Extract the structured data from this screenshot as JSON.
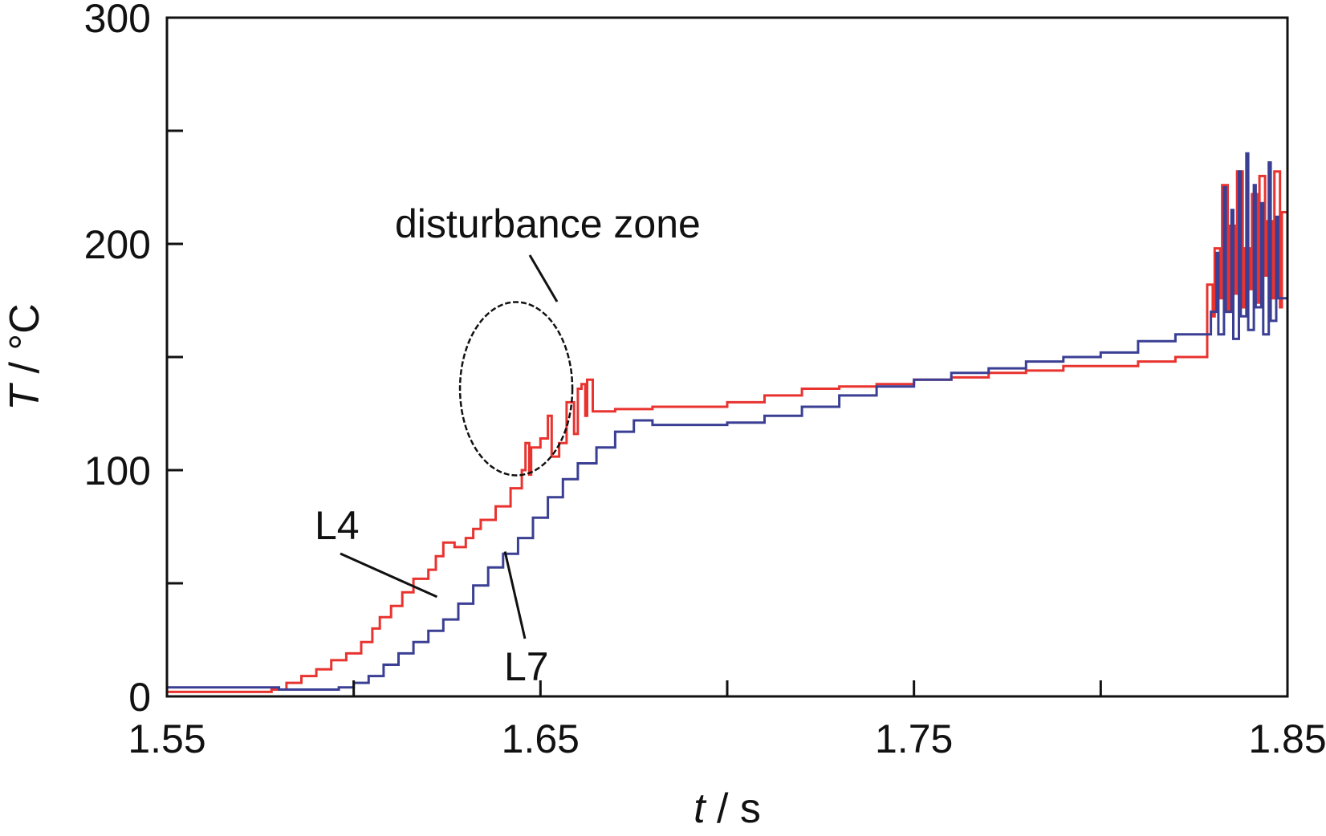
{
  "chart_data": {
    "type": "line",
    "title": "",
    "xlabel_var": "t",
    "xlabel_unit": " / s",
    "ylabel_var": "T",
    "ylabel_unit": " / °C",
    "xlim": [
      1.55,
      1.85
    ],
    "ylim": [
      0,
      300
    ],
    "x_ticks": [
      1.55,
      1.6,
      1.65,
      1.7,
      1.75,
      1.8,
      1.85
    ],
    "x_tick_labels": [
      "1.55",
      "",
      "1.65",
      "",
      "1.75",
      "",
      "1.85"
    ],
    "y_ticks": [
      0,
      50,
      100,
      150,
      200,
      250,
      300
    ],
    "y_tick_labels": [
      "0",
      "",
      "100",
      "",
      "200",
      "",
      "300"
    ],
    "grid": false,
    "colors": {
      "L4": "#e8332f",
      "L7": "#3a3f94",
      "axis": "#111111",
      "annotation": "#111111"
    },
    "series": [
      {
        "name": "L4",
        "x": [
          1.55,
          1.56,
          1.578,
          1.582,
          1.586,
          1.59,
          1.594,
          1.598,
          1.602,
          1.605,
          1.607,
          1.61,
          1.613,
          1.616,
          1.62,
          1.622,
          1.624,
          1.627,
          1.63,
          1.632,
          1.634,
          1.638,
          1.642,
          1.645,
          1.646,
          1.647,
          1.6475,
          1.65,
          1.652,
          1.653,
          1.655,
          1.657,
          1.659,
          1.66,
          1.661,
          1.662,
          1.6625,
          1.664,
          1.67,
          1.68,
          1.69,
          1.7,
          1.71,
          1.72,
          1.73,
          1.74,
          1.75,
          1.76,
          1.77,
          1.78,
          1.79,
          1.8,
          1.81,
          1.82,
          1.828,
          1.8285,
          1.83,
          1.8305,
          1.832,
          1.8325,
          1.834,
          1.8345,
          1.836,
          1.8365,
          1.838,
          1.8385,
          1.84,
          1.8405,
          1.842,
          1.8425,
          1.844,
          1.8445,
          1.846,
          1.8465,
          1.848,
          1.8485,
          1.85
        ],
        "y": [
          2,
          2,
          3,
          6,
          9,
          12,
          16,
          19,
          24,
          30,
          35,
          40,
          46,
          52,
          56,
          62,
          68,
          66,
          70,
          74,
          78,
          84,
          92,
          100,
          112,
          98,
          110,
          114,
          124,
          106,
          112,
          130,
          116,
          136,
          138,
          124,
          140,
          126,
          127,
          128,
          128,
          130,
          133,
          136,
          137,
          138,
          140,
          141,
          143,
          144,
          146,
          146,
          148,
          150,
          150,
          182,
          168,
          198,
          176,
          226,
          170,
          208,
          178,
          232,
          172,
          198,
          180,
          222,
          174,
          230,
          186,
          210,
          176,
          232,
          172,
          214,
          170
        ]
      },
      {
        "name": "L7",
        "x": [
          1.55,
          1.56,
          1.57,
          1.58,
          1.59,
          1.596,
          1.6,
          1.604,
          1.608,
          1.612,
          1.616,
          1.62,
          1.624,
          1.628,
          1.632,
          1.636,
          1.64,
          1.644,
          1.648,
          1.652,
          1.656,
          1.66,
          1.665,
          1.67,
          1.675,
          1.68,
          1.69,
          1.7,
          1.71,
          1.72,
          1.73,
          1.74,
          1.75,
          1.76,
          1.77,
          1.78,
          1.79,
          1.8,
          1.81,
          1.82,
          1.829,
          1.8295,
          1.831,
          1.8315,
          1.833,
          1.8335,
          1.835,
          1.8355,
          1.837,
          1.8375,
          1.839,
          1.8395,
          1.841,
          1.8415,
          1.843,
          1.8435,
          1.845,
          1.8455,
          1.847,
          1.8475,
          1.85
        ],
        "y": [
          4,
          4,
          4,
          3,
          3,
          4,
          6,
          9,
          14,
          19,
          24,
          29,
          34,
          41,
          49,
          57,
          63,
          70,
          79,
          88,
          96,
          103,
          110,
          117,
          122,
          120,
          120,
          121,
          124,
          128,
          133,
          137,
          140,
          143,
          145,
          148,
          150,
          152,
          157,
          160,
          160,
          170,
          196,
          160,
          225,
          170,
          215,
          158,
          232,
          168,
          240,
          162,
          226,
          172,
          218,
          160,
          236,
          166,
          212,
          176,
          172
        ]
      }
    ],
    "annotations": {
      "disturbance_label": "disturbance zone",
      "L4_label": "L4",
      "L7_label": "L7"
    }
  }
}
